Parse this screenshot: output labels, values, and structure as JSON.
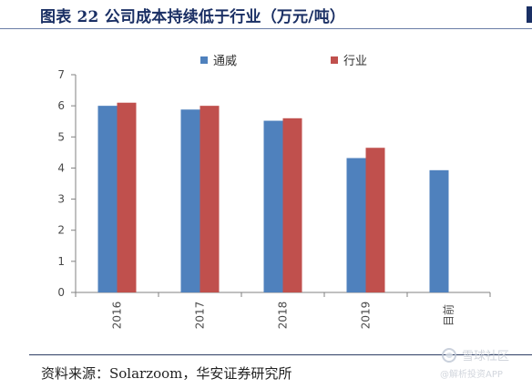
{
  "title": "图表 22 公司成本持续低于行业（万元/吨）",
  "source": "资料来源：Solarzoom，华安证券研究所",
  "watermark": {
    "brand": "雪球社区",
    "sub": "@解析投资APP"
  },
  "colors": {
    "title": "#1a2f64",
    "company": "#4f81bd",
    "industry": "#c0504d",
    "axis": "#808080"
  },
  "chart_data": {
    "type": "bar",
    "categories": [
      "2016",
      "2017",
      "2018",
      "2019",
      "目前"
    ],
    "series": [
      {
        "name": "通威",
        "values": [
          6.0,
          5.88,
          5.52,
          4.32,
          3.93
        ]
      },
      {
        "name": "行业",
        "values": [
          6.1,
          6.0,
          5.6,
          4.65,
          null
        ]
      }
    ],
    "ylim": [
      0,
      7
    ],
    "yticks": [
      0,
      1,
      2,
      3,
      4,
      5,
      6,
      7
    ],
    "grid": false,
    "legend": "top-center",
    "xlabel_rotation": -90
  }
}
